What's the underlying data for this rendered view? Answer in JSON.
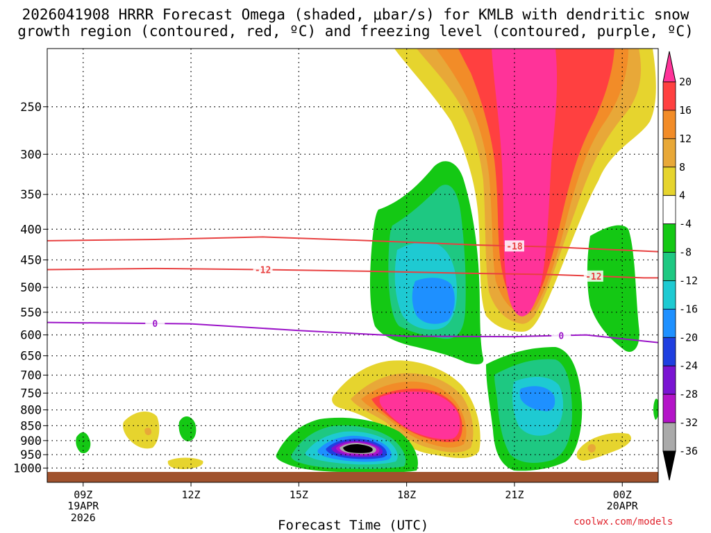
{
  "title_line1": "2026041908 HRRR Forecast Omega (shaded, μbar/s) for KMLB with dendritic snow",
  "title_line2": "growth region (contoured, red, ºC) and freezing level (contoured, purple, ºC)",
  "chart_data": {
    "type": "time-height cross section",
    "model": "HRRR",
    "init": "2026041908",
    "site": "KMLB",
    "xlabel": "Forecast Time (UTC)",
    "x_ticks": [
      "09Z",
      "12Z",
      "15Z",
      "18Z",
      "21Z",
      "00Z"
    ],
    "x_dates": [
      {
        "tick": "09Z",
        "lines": [
          "19APR",
          "2026"
        ]
      },
      {
        "tick": "00Z",
        "lines": [
          "20APR"
        ]
      }
    ],
    "x_range_hours": [
      8,
      25
    ],
    "y_ticks_hpa": [
      250,
      300,
      350,
      400,
      450,
      500,
      550,
      600,
      650,
      700,
      750,
      800,
      850,
      900,
      950,
      1000
    ],
    "y_range_hpa": [
      200,
      1015
    ],
    "colorbar_labels": [
      20,
      16,
      12,
      8,
      4,
      -4,
      -8,
      -12,
      -16,
      -20,
      -24,
      -28,
      -32,
      -36
    ],
    "colorbar_colors": [
      "#ff3399",
      "#ff4040",
      "#f28c28",
      "#e8a838",
      "#e6d42e",
      "#ffffff",
      "#14c814",
      "#1ec882",
      "#1ecad2",
      "#1e90ff",
      "#1f3fe0",
      "#7a14d2",
      "#b414c8",
      "#aaaaaa",
      "#000000"
    ],
    "contours": [
      {
        "field": "temperature",
        "value_label": "-18",
        "color": "#e84040",
        "points": [
          [
            8.0,
            418
          ],
          [
            11,
            416
          ],
          [
            14,
            412
          ],
          [
            17,
            418
          ],
          [
            20,
            425
          ],
          [
            22,
            428
          ],
          [
            25,
            436
          ]
        ]
      },
      {
        "field": "temperature",
        "value_label": "-12",
        "color": "#e84040",
        "points": [
          [
            8.0,
            467
          ],
          [
            11,
            465
          ],
          [
            14,
            467
          ],
          [
            17,
            470
          ],
          [
            20,
            474
          ],
          [
            22,
            476
          ],
          [
            24.6,
            482
          ],
          [
            25,
            482
          ]
        ]
      },
      {
        "field": "freezing level",
        "value_label": "0",
        "color": "#9b14c8",
        "points": [
          [
            8.0,
            572
          ],
          [
            12,
            575
          ],
          [
            15,
            590
          ],
          [
            18,
            603
          ],
          [
            21,
            604
          ],
          [
            23,
            600
          ],
          [
            25,
            618
          ]
        ]
      }
    ],
    "shaded_regions": [
      {
        "name": "strong upward motion aloft",
        "levels": [
          4,
          8,
          12,
          16,
          20
        ],
        "approx_time_hours": [
          20.5,
          24.8
        ],
        "approx_pressure_hpa": [
          200,
          575
        ]
      },
      {
        "name": "upward motion mid-level",
        "levels": [
          4,
          8,
          12,
          16,
          20
        ],
        "approx_time_hours": [
          16.5,
          20.5
        ],
        "approx_pressure_hpa": [
          690,
          940
        ]
      },
      {
        "name": "downward motion mid-level",
        "levels": [
          -4,
          -8,
          -12,
          -16
        ],
        "approx_time_hours": [
          16.5,
          20
        ],
        "approx_pressure_hpa": [
          310,
          670
        ]
      },
      {
        "name": "downward motion low-level",
        "levels": [
          -4,
          -8,
          -12,
          -16,
          -20,
          -24,
          -28,
          -32,
          -36
        ],
        "approx_time_hours": [
          15.5,
          18.5
        ],
        "approx_pressure_hpa": [
          880,
          1000
        ]
      },
      {
        "name": "downward motion near 22Z",
        "levels": [
          -4,
          -8,
          -12,
          -16
        ],
        "approx_time_hours": [
          21,
          23.5
        ],
        "approx_pressure_hpa": [
          650,
          990
        ]
      }
    ]
  },
  "credit": "coolwx.com/models"
}
